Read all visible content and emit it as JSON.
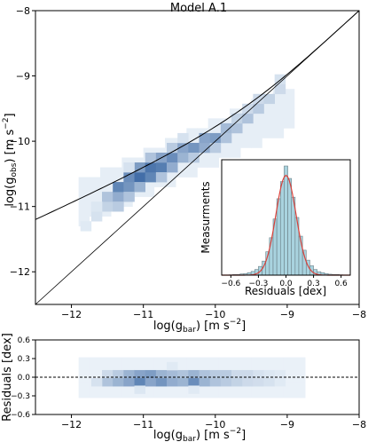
{
  "title": "Model A.1",
  "colors": {
    "heatmap_low": "#f4f9fd",
    "heatmap_high": "#2f5f9e",
    "model_curve": "#000000",
    "hist_bar_fill": "#a9d3df",
    "hist_bar_edge": "#6b7f86",
    "gaussian_fit": "#d9413a"
  },
  "chart_data": [
    {
      "name": "main-panel",
      "type": "heatmap",
      "xlabel": {
        "prefix": "log(g",
        "sub": "bar",
        "suffix": ") [m s",
        "sup": "−2",
        "close": "]"
      },
      "ylabel": {
        "prefix": "log(g",
        "sub": "obs",
        "suffix": ") [m s",
        "sup": "−2",
        "close": "]"
      },
      "xlim": [
        -12.5,
        -8.0
      ],
      "ylim": [
        -12.5,
        -8.0
      ],
      "xticks": [
        -12,
        -11,
        -10,
        -9,
        -8
      ],
      "xtick_labels": [
        "−12",
        "−11",
        "−10",
        "−9",
        "−8"
      ],
      "yticks": [
        -12,
        -11,
        -10,
        -9,
        -8
      ],
      "ytick_labels": [
        "−12",
        "−11",
        "−10",
        "−9",
        "−8"
      ],
      "grid": false,
      "density_bins": [
        {
          "x": -11.65,
          "y": -11.15,
          "w": 0.15
        },
        {
          "x": -11.5,
          "y": -11.0,
          "w": 0.25
        },
        {
          "x": -11.5,
          "y": -10.85,
          "w": 0.35
        },
        {
          "x": -11.35,
          "y": -10.85,
          "w": 0.5
        },
        {
          "x": -11.35,
          "y": -10.7,
          "w": 0.75
        },
        {
          "x": -11.35,
          "y": -11.0,
          "w": 0.3
        },
        {
          "x": -11.2,
          "y": -10.7,
          "w": 0.65
        },
        {
          "x": -11.2,
          "y": -10.55,
          "w": 0.7
        },
        {
          "x": -11.2,
          "y": -10.85,
          "w": 0.35
        },
        {
          "x": -11.05,
          "y": -10.55,
          "w": 0.9
        },
        {
          "x": -11.05,
          "y": -10.4,
          "w": 0.6
        },
        {
          "x": -11.05,
          "y": -10.7,
          "w": 0.45
        },
        {
          "x": -10.9,
          "y": -10.55,
          "w": 0.75
        },
        {
          "x": -10.9,
          "y": -10.4,
          "w": 0.85
        },
        {
          "x": -10.9,
          "y": -10.25,
          "w": 0.35
        },
        {
          "x": -10.75,
          "y": -10.4,
          "w": 0.8
        },
        {
          "x": -10.75,
          "y": -10.25,
          "w": 0.55
        },
        {
          "x": -10.75,
          "y": -10.55,
          "w": 0.35
        },
        {
          "x": -10.6,
          "y": -10.25,
          "w": 0.7
        },
        {
          "x": -10.6,
          "y": -10.4,
          "w": 0.5
        },
        {
          "x": -10.6,
          "y": -10.1,
          "w": 0.3
        },
        {
          "x": -10.45,
          "y": -10.25,
          "w": 0.45
        },
        {
          "x": -10.45,
          "y": -10.1,
          "w": 0.55
        },
        {
          "x": -10.3,
          "y": -10.1,
          "w": 0.65
        },
        {
          "x": -10.3,
          "y": -10.25,
          "w": 0.3
        },
        {
          "x": -10.15,
          "y": -10.1,
          "w": 0.5
        },
        {
          "x": -10.15,
          "y": -9.95,
          "w": 0.55
        },
        {
          "x": -10.0,
          "y": -9.95,
          "w": 0.6
        },
        {
          "x": -10.0,
          "y": -10.1,
          "w": 0.3
        },
        {
          "x": -9.85,
          "y": -9.8,
          "w": 0.4
        },
        {
          "x": -9.85,
          "y": -9.95,
          "w": 0.35
        },
        {
          "x": -9.7,
          "y": -9.8,
          "w": 0.35
        },
        {
          "x": -9.7,
          "y": -9.65,
          "w": 0.25
        },
        {
          "x": -9.55,
          "y": -9.65,
          "w": 0.35
        },
        {
          "x": -9.55,
          "y": -9.5,
          "w": 0.2
        },
        {
          "x": -9.4,
          "y": -9.5,
          "w": 0.3
        },
        {
          "x": -9.4,
          "y": -9.35,
          "w": 0.2
        },
        {
          "x": -9.25,
          "y": -9.35,
          "w": 0.25
        },
        {
          "x": -9.1,
          "y": -9.2,
          "w": 0.2
        },
        {
          "x": -9.1,
          "y": -9.05,
          "w": 0.15
        },
        {
          "x": -11.8,
          "y": -11.3,
          "w": 0.1
        },
        {
          "x": -11.65,
          "y": -11.0,
          "w": 0.12
        },
        {
          "x": -10.45,
          "y": -9.95,
          "w": 0.15
        },
        {
          "x": -11.2,
          "y": -10.4,
          "w": 0.15
        }
      ]
    },
    {
      "name": "residual-histogram",
      "type": "bar",
      "xlabel": "Residuals [dex]",
      "ylabel": "Measurments",
      "xlim": [
        -0.7,
        0.7
      ],
      "ylim": [
        0,
        370
      ],
      "xticks": [
        -0.6,
        -0.3,
        0.0,
        0.3,
        0.6
      ],
      "xtick_labels": [
        "−0.6",
        "−0.3",
        "0.0",
        "0.3",
        "0.6"
      ],
      "bin_width": 0.04,
      "bin_centers": [
        -0.6,
        -0.56,
        -0.52,
        -0.48,
        -0.44,
        -0.4,
        -0.36,
        -0.32,
        -0.28,
        -0.24,
        -0.2,
        -0.16,
        -0.12,
        -0.08,
        -0.04,
        0.0,
        0.04,
        0.08,
        0.12,
        0.16,
        0.2,
        0.24,
        0.28,
        0.32,
        0.36,
        0.4,
        0.44,
        0.48,
        0.52,
        0.56,
        0.6
      ],
      "values": [
        1,
        2,
        2,
        4,
        5,
        8,
        12,
        18,
        28,
        45,
        75,
        120,
        180,
        245,
        300,
        350,
        310,
        250,
        185,
        125,
        80,
        48,
        30,
        18,
        11,
        8,
        5,
        3,
        2,
        2,
        1
      ],
      "gaussian_fit": {
        "amplitude": 320,
        "mean": 0.0,
        "sigma": 0.11
      }
    },
    {
      "name": "residual-panel",
      "type": "heatmap",
      "xlabel": {
        "prefix": "log(g",
        "sub": "bar",
        "suffix": ") [m s",
        "sup": "−2",
        "close": "]"
      },
      "ylabel": "Residuals [dex]",
      "xlim": [
        -12.5,
        -8.0
      ],
      "ylim": [
        -0.6,
        0.6
      ],
      "xticks": [
        -12,
        -11,
        -10,
        -9,
        -8
      ],
      "xtick_labels": [
        "−12",
        "−11",
        "−10",
        "−9",
        "−8"
      ],
      "yticks": [
        -0.6,
        -0.3,
        0.0,
        0.3,
        0.6
      ],
      "ytick_labels": [
        "−0.6",
        "−0.3",
        "0.0",
        "0.3",
        "0.6"
      ],
      "reference_line": 0.0,
      "density_bins": [
        {
          "x": -11.5,
          "y": 0.05,
          "w": 0.2
        },
        {
          "x": -11.5,
          "y": -0.08,
          "w": 0.35
        },
        {
          "x": -11.35,
          "y": 0.05,
          "w": 0.3
        },
        {
          "x": -11.35,
          "y": -0.08,
          "w": 0.45
        },
        {
          "x": -11.2,
          "y": 0.05,
          "w": 0.45
        },
        {
          "x": -11.2,
          "y": -0.08,
          "w": 0.55
        },
        {
          "x": -11.05,
          "y": 0.05,
          "w": 0.55
        },
        {
          "x": -11.05,
          "y": -0.08,
          "w": 0.75
        },
        {
          "x": -10.9,
          "y": 0.05,
          "w": 0.6
        },
        {
          "x": -10.9,
          "y": -0.08,
          "w": 0.55
        },
        {
          "x": -10.75,
          "y": 0.05,
          "w": 0.45
        },
        {
          "x": -10.75,
          "y": -0.08,
          "w": 0.65
        },
        {
          "x": -10.6,
          "y": 0.05,
          "w": 0.4
        },
        {
          "x": -10.6,
          "y": -0.08,
          "w": 0.5
        },
        {
          "x": -10.45,
          "y": 0.05,
          "w": 0.35
        },
        {
          "x": -10.45,
          "y": -0.08,
          "w": 0.45
        },
        {
          "x": -10.3,
          "y": 0.05,
          "w": 0.45
        },
        {
          "x": -10.3,
          "y": -0.08,
          "w": 0.7
        },
        {
          "x": -10.15,
          "y": 0.05,
          "w": 0.35
        },
        {
          "x": -10.15,
          "y": -0.08,
          "w": 0.45
        },
        {
          "x": -10.0,
          "y": 0.05,
          "w": 0.3
        },
        {
          "x": -10.0,
          "y": -0.08,
          "w": 0.35
        },
        {
          "x": -9.85,
          "y": 0.05,
          "w": 0.3
        },
        {
          "x": -9.85,
          "y": -0.08,
          "w": 0.3
        },
        {
          "x": -9.7,
          "y": 0.05,
          "w": 0.2
        },
        {
          "x": -9.7,
          "y": -0.08,
          "w": 0.25
        },
        {
          "x": -9.55,
          "y": 0.05,
          "w": 0.2
        },
        {
          "x": -9.55,
          "y": -0.08,
          "w": 0.2
        },
        {
          "x": -9.4,
          "y": 0.05,
          "w": 0.15
        },
        {
          "x": -9.4,
          "y": -0.08,
          "w": 0.18
        },
        {
          "x": -9.25,
          "y": 0.05,
          "w": 0.12
        },
        {
          "x": -9.25,
          "y": -0.08,
          "w": 0.15
        },
        {
          "x": -9.1,
          "y": 0.05,
          "w": 0.1
        },
        {
          "x": -9.1,
          "y": -0.08,
          "w": 0.1
        },
        {
          "x": -11.65,
          "y": -0.08,
          "w": 0.15
        },
        {
          "x": -11.05,
          "y": -0.2,
          "w": 0.12
        },
        {
          "x": -10.6,
          "y": 0.18,
          "w": 0.1
        },
        {
          "x": -10.3,
          "y": -0.2,
          "w": 0.1
        }
      ]
    }
  ]
}
